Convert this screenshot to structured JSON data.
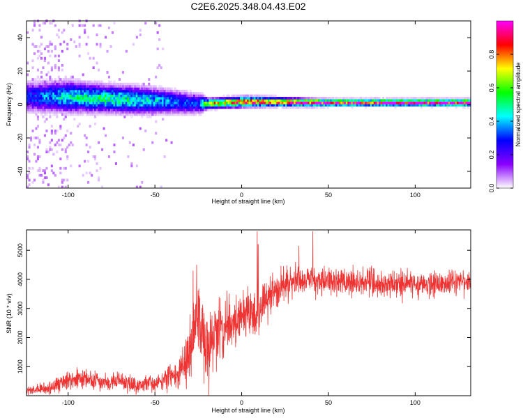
{
  "title": "C2E6.2025.348.04.43.E02",
  "chart_data": [
    {
      "type": "heatmap",
      "xlabel": "Height of straight line (km)",
      "ylabel": "Frequency (Hz)",
      "xlim": [
        -124,
        132
      ],
      "ylim": [
        -50,
        50
      ],
      "x_ticks": [
        -100,
        -50,
        0,
        50,
        100
      ],
      "y_ticks": [
        -40,
        -20,
        0,
        20,
        40
      ],
      "x_tick_labels": [
        "-100",
        "-50",
        "0",
        "50",
        "100"
      ],
      "y_tick_labels": [
        "-40",
        "-20",
        "0",
        "20",
        "40"
      ],
      "colorbar": {
        "label": "Normalized spectral amplitude",
        "range": [
          0,
          1
        ],
        "ticks": [
          0.0,
          0.2,
          0.4,
          0.6,
          0.8
        ],
        "tick_labels": [
          "0.0",
          "0.2",
          "0.4",
          "0.6",
          "0.8"
        ],
        "colormap": [
          "#ffffff",
          "#8a00ff",
          "#0000ff",
          "#00ffff",
          "#00ff00",
          "#ffff00",
          "#ff0000",
          "#ff00ff"
        ]
      },
      "band_center_hz": [
        [
          -120,
          4
        ],
        [
          -100,
          4
        ],
        [
          -80,
          3
        ],
        [
          -60,
          2
        ],
        [
          -40,
          1
        ],
        [
          -30,
          0
        ],
        [
          -20,
          0
        ],
        [
          0,
          1
        ],
        [
          20,
          1
        ],
        [
          40,
          0.5
        ],
        [
          60,
          0.5
        ],
        [
          80,
          0.5
        ],
        [
          100,
          0.5
        ],
        [
          132,
          0.5
        ]
      ],
      "band_halfwidth_hz": [
        [
          -120,
          9
        ],
        [
          -100,
          9
        ],
        [
          -80,
          8
        ],
        [
          -60,
          8
        ],
        [
          -40,
          7
        ],
        [
          -25,
          6
        ],
        [
          -20,
          3
        ],
        [
          0,
          3
        ],
        [
          50,
          2
        ],
        [
          132,
          2
        ]
      ],
      "band_peak_amplitude": [
        [
          -120,
          0.3
        ],
        [
          -100,
          0.45
        ],
        [
          -80,
          0.5
        ],
        [
          -60,
          0.45
        ],
        [
          -40,
          0.35
        ],
        [
          -25,
          0.3
        ],
        [
          -20,
          0.65
        ],
        [
          0,
          0.85
        ],
        [
          20,
          0.8
        ],
        [
          40,
          0.95
        ],
        [
          60,
          0.95
        ],
        [
          80,
          0.97
        ],
        [
          100,
          0.98
        ],
        [
          132,
          1.0
        ]
      ]
    },
    {
      "type": "line",
      "xlabel": "Height of straight line (km)",
      "ylabel": "SNR (10 * v/v)",
      "xlim": [
        -124,
        132
      ],
      "ylim": [
        0,
        5700
      ],
      "x_ticks": [
        -100,
        -50,
        0,
        50,
        100
      ],
      "y_ticks": [
        1000,
        2000,
        3000,
        4000,
        5000
      ],
      "x_tick_labels": [
        "-100",
        "-50",
        "0",
        "50",
        "100"
      ],
      "y_tick_labels": [
        "1000",
        "2000",
        "3000",
        "4000",
        "5000"
      ],
      "series": [
        {
          "color": "#ee3333",
          "trend": [
            [
              -124,
              150
            ],
            [
              -110,
              250
            ],
            [
              -100,
              550
            ],
            [
              -90,
              600
            ],
            [
              -80,
              450
            ],
            [
              -70,
              500
            ],
            [
              -60,
              350
            ],
            [
              -50,
              450
            ],
            [
              -40,
              650
            ],
            [
              -35,
              900
            ],
            [
              -30,
              1400
            ],
            [
              -27,
              2400
            ],
            [
              -25,
              2500
            ],
            [
              -22,
              1500
            ],
            [
              -20,
              1800
            ],
            [
              -15,
              2200
            ],
            [
              -10,
              2400
            ],
            [
              -5,
              2500
            ],
            [
              0,
              2700
            ],
            [
              10,
              2900
            ],
            [
              15,
              3300
            ],
            [
              20,
              3600
            ],
            [
              25,
              3800
            ],
            [
              30,
              4000
            ],
            [
              40,
              4000
            ],
            [
              50,
              3950
            ],
            [
              60,
              3900
            ],
            [
              70,
              3900
            ],
            [
              80,
              3850
            ],
            [
              100,
              3850
            ],
            [
              120,
              3850
            ],
            [
              132,
              3900
            ]
          ],
          "noise_amplitude": [
            [
              -124,
              150
            ],
            [
              -100,
              350
            ],
            [
              -50,
              300
            ],
            [
              -35,
              600
            ],
            [
              -28,
              1500
            ],
            [
              -20,
              1400
            ],
            [
              0,
              1000
            ],
            [
              30,
              600
            ],
            [
              60,
              550
            ],
            [
              132,
              450
            ]
          ],
          "spikes": [
            [
              -26,
              4500
            ],
            [
              -28,
              4300
            ],
            [
              9,
              5650
            ],
            [
              9.5,
              5200
            ],
            [
              41,
              5650
            ],
            [
              33,
              5150
            ]
          ]
        }
      ]
    }
  ]
}
